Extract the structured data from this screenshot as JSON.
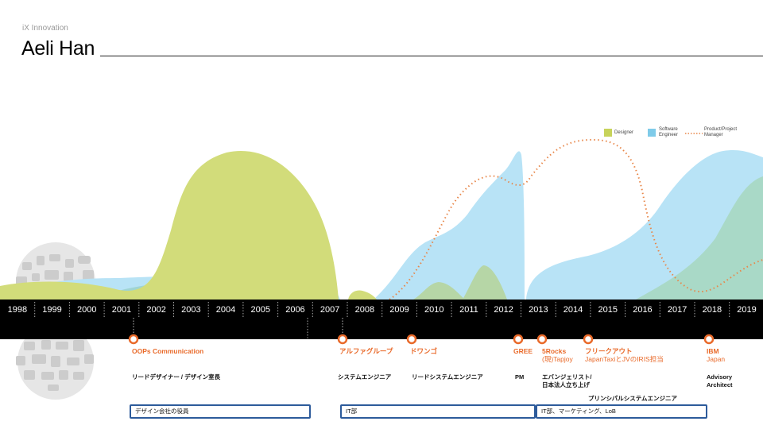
{
  "header": {
    "subtitle": "iX Innovation",
    "title": "Aeli Han"
  },
  "legend": {
    "designer": "Designer",
    "software": "Software Engineer",
    "pm": "Product/Project Manager",
    "colors": {
      "designer": "#c7d35a",
      "software": "#7fcbe9",
      "pm": "#e8874a"
    }
  },
  "timeline": {
    "years": [
      "1998",
      "1999",
      "2000",
      "2001",
      "2002",
      "2003",
      "2004",
      "2005",
      "2006",
      "2007",
      "2008",
      "2009",
      "2010",
      "2011",
      "2012",
      "2013",
      "2014",
      "2015",
      "2016",
      "2017",
      "2018",
      "2019"
    ]
  },
  "companies": [
    {
      "name": "OOPs Communication",
      "note": ""
    },
    {
      "name": "アルファグループ",
      "note": ""
    },
    {
      "name": "ドワンゴ",
      "note": ""
    },
    {
      "name": "GREE",
      "note": ""
    },
    {
      "name": "5Rocks",
      "note": "(現)Tapjoy"
    },
    {
      "name": "フリークアウト",
      "note": "JapanTaxiとJVのIRIS担当"
    },
    {
      "name": "IBM",
      "note": "Japan"
    }
  ],
  "roles": {
    "oops": "リードデザイナー / デザイン室長",
    "alpha": "システムエンジニア",
    "dwango": "リードシステムエンジニア",
    "gree": "PM",
    "fiverocks_1": "エバンジェリスト/",
    "fiverocks_2": "日本法人立ち上げ",
    "principal": "プリンシパルシステムエンジニア",
    "ibm_1": "Advisory",
    "ibm_2": "Architect"
  },
  "departments": [
    {
      "label": "デザイン会社の役員"
    },
    {
      "label": "IT部"
    },
    {
      "label": "IT部、マーケティング、LoB"
    }
  ]
}
